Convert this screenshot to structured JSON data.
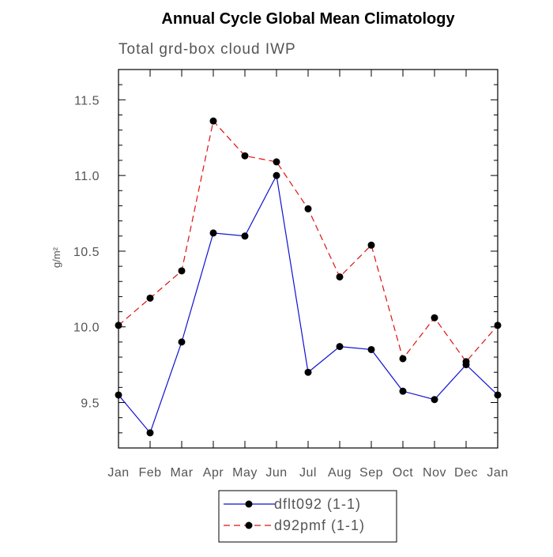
{
  "chart_data": {
    "type": "line",
    "title": "Annual Cycle Global Mean Climatology",
    "subtitle": "Total grd-box cloud IWP",
    "xlabel": "",
    "ylabel": "g/m²",
    "categories": [
      "Jan",
      "Feb",
      "Mar",
      "Apr",
      "May",
      "Jun",
      "Jul",
      "Aug",
      "Sep",
      "Oct",
      "Nov",
      "Dec",
      "Jan"
    ],
    "ylim": [
      9.2,
      11.7
    ],
    "yticks": [
      "9.5",
      "10.0",
      "10.5",
      "11.0",
      "11.5"
    ],
    "grid": false,
    "legend_position": "bottom",
    "series": [
      {
        "name": "dflt092 (1-1)",
        "color": "#1010d0",
        "line_style": "solid",
        "marker": "filled-circle",
        "values": [
          9.55,
          9.3,
          9.9,
          10.62,
          10.6,
          11.0,
          9.7,
          9.87,
          9.85,
          9.575,
          9.52,
          9.75,
          9.55
        ]
      },
      {
        "name": "d92pmf (1-1)",
        "color": "#e01010",
        "line_style": "dashed",
        "marker": "filled-circle",
        "values": [
          10.01,
          10.19,
          10.37,
          11.36,
          11.13,
          11.09,
          10.78,
          10.33,
          10.54,
          9.79,
          10.06,
          9.77,
          10.01
        ]
      }
    ]
  }
}
